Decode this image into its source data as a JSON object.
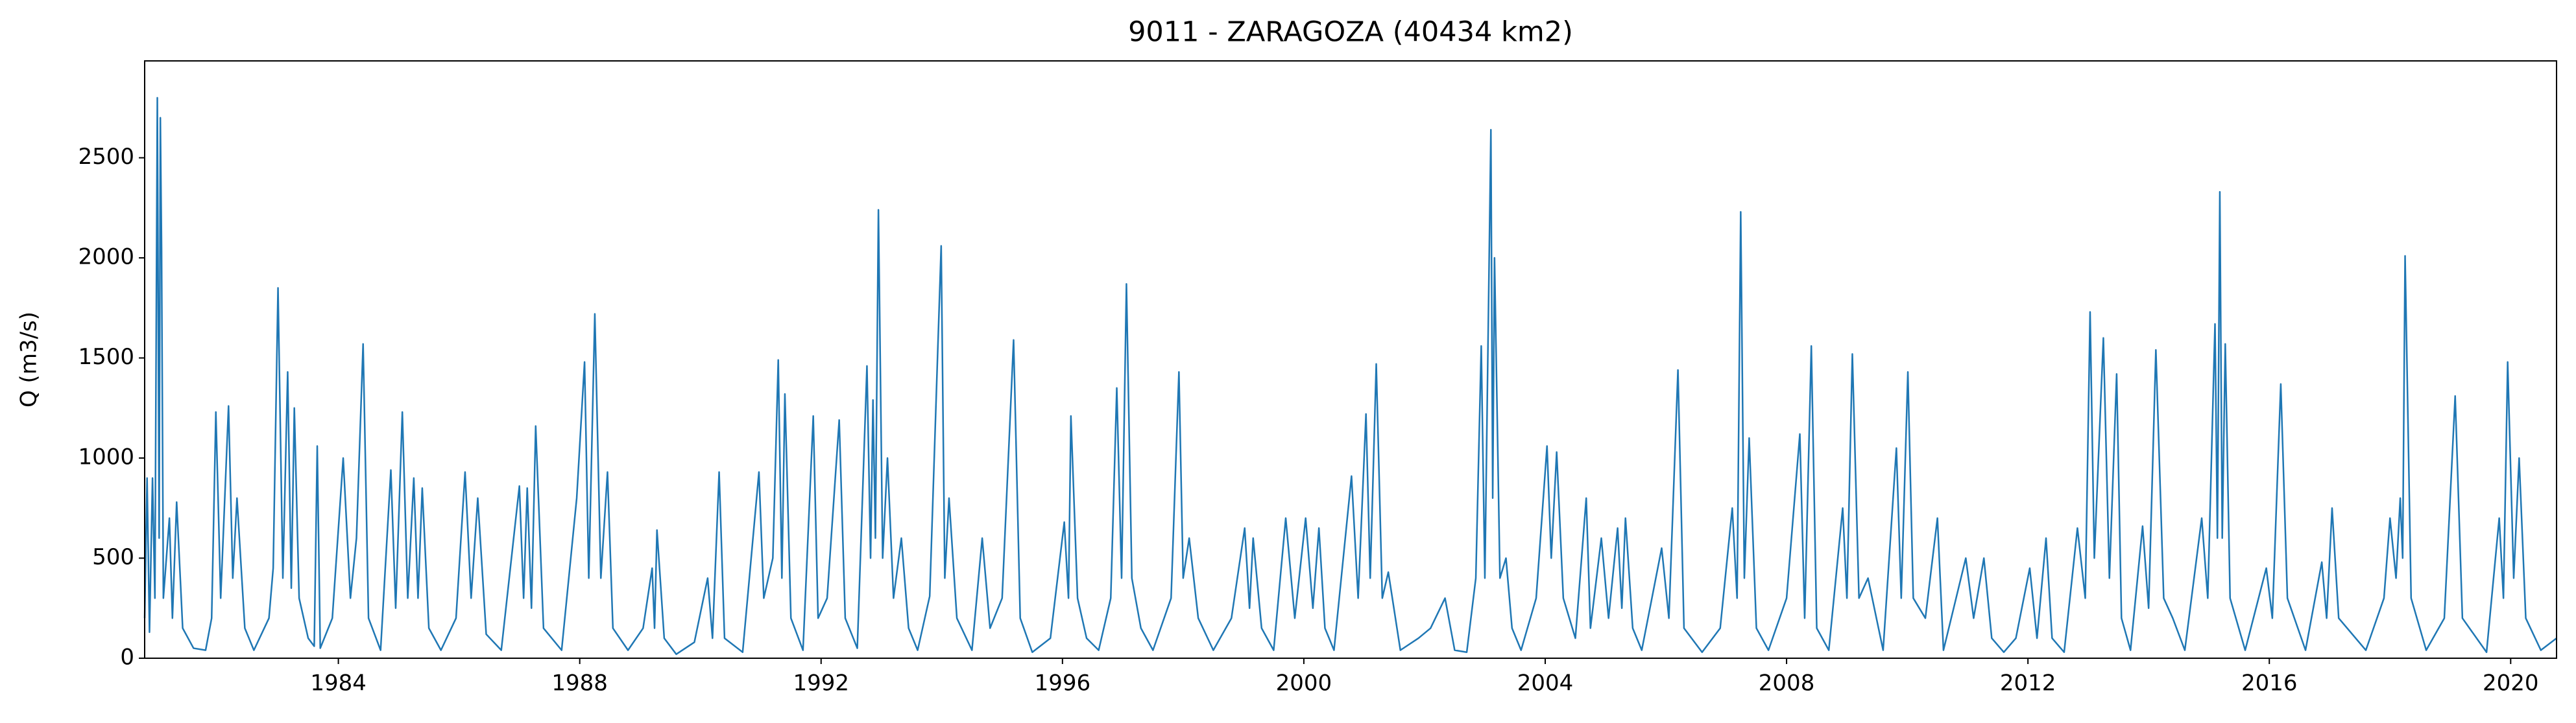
{
  "chart_data": {
    "type": "line",
    "title": "9011 - ZARAGOZA (40434 km2)",
    "y_label": "Q (m3/s)",
    "color": "#1f77b4",
    "xlim": [
      1980.79,
      2020.76
    ],
    "xticks": [
      1984,
      1988,
      1992,
      1996,
      2000,
      2004,
      2008,
      2012,
      2016,
      2020
    ],
    "ylim": [
      0,
      2984
    ],
    "yticks": [
      0,
      500,
      1000,
      1500,
      2000,
      2500
    ],
    "grid": false,
    "x": [
      1980.79,
      1980.83,
      1980.87,
      1980.92,
      1980.96,
      1981.0,
      1981.03,
      1981.05,
      1981.07,
      1981.1,
      1981.2,
      1981.25,
      1981.32,
      1981.42,
      1981.6,
      1981.8,
      1981.9,
      1981.97,
      1982.05,
      1982.18,
      1982.25,
      1982.32,
      1982.45,
      1982.6,
      1982.85,
      1982.92,
      1983.0,
      1983.08,
      1983.16,
      1983.22,
      1983.27,
      1983.35,
      1983.5,
      1983.6,
      1983.65,
      1983.7,
      1983.9,
      1984.08,
      1984.2,
      1984.3,
      1984.41,
      1984.5,
      1984.7,
      1984.87,
      1984.95,
      1985.06,
      1985.15,
      1985.25,
      1985.32,
      1985.39,
      1985.5,
      1985.7,
      1985.95,
      1986.1,
      1986.2,
      1986.31,
      1986.45,
      1986.7,
      1987.0,
      1987.07,
      1987.13,
      1987.2,
      1987.27,
      1987.4,
      1987.7,
      1987.95,
      1988.08,
      1988.15,
      1988.25,
      1988.35,
      1988.46,
      1988.55,
      1988.8,
      1989.05,
      1989.2,
      1989.24,
      1989.28,
      1989.4,
      1989.6,
      1989.9,
      1990.12,
      1990.2,
      1990.31,
      1990.4,
      1990.7,
      1990.97,
      1991.05,
      1991.2,
      1991.29,
      1991.35,
      1991.4,
      1991.5,
      1991.7,
      1991.87,
      1991.95,
      1992.1,
      1992.3,
      1992.4,
      1992.6,
      1992.76,
      1992.82,
      1992.86,
      1992.9,
      1992.95,
      1993.02,
      1993.1,
      1993.2,
      1993.33,
      1993.45,
      1993.6,
      1993.8,
      1993.99,
      1994.05,
      1994.12,
      1994.25,
      1994.5,
      1994.67,
      1994.8,
      1995.0,
      1995.19,
      1995.3,
      1995.5,
      1995.8,
      1996.03,
      1996.1,
      1996.14,
      1996.25,
      1996.4,
      1996.6,
      1996.8,
      1996.9,
      1996.98,
      1997.06,
      1997.15,
      1997.3,
      1997.5,
      1997.8,
      1997.93,
      1998.0,
      1998.1,
      1998.25,
      1998.5,
      1998.8,
      1999.02,
      1999.1,
      1999.16,
      1999.3,
      1999.5,
      1999.7,
      1999.85,
      2000.03,
      2000.15,
      2000.25,
      2000.35,
      2000.5,
      2000.79,
      2000.9,
      2001.03,
      2001.1,
      2001.2,
      2001.3,
      2001.4,
      2001.6,
      2001.9,
      2002.1,
      2002.34,
      2002.5,
      2002.7,
      2002.85,
      2002.94,
      2003.0,
      2003.1,
      2003.13,
      2003.16,
      2003.25,
      2003.35,
      2003.45,
      2003.6,
      2003.85,
      2004.03,
      2004.1,
      2004.19,
      2004.3,
      2004.5,
      2004.68,
      2004.75,
      2004.93,
      2005.05,
      2005.2,
      2005.27,
      2005.33,
      2005.45,
      2005.6,
      2005.93,
      2006.05,
      2006.2,
      2006.3,
      2006.6,
      2006.9,
      2007.1,
      2007.18,
      2007.24,
      2007.3,
      2007.38,
      2007.5,
      2007.7,
      2008.0,
      2008.22,
      2008.3,
      2008.41,
      2008.5,
      2008.7,
      2008.93,
      2009.0,
      2009.09,
      2009.2,
      2009.35,
      2009.6,
      2009.82,
      2009.9,
      2010.01,
      2010.1,
      2010.3,
      2010.5,
      2010.6,
      2010.97,
      2011.1,
      2011.27,
      2011.4,
      2011.6,
      2011.8,
      2012.03,
      2012.15,
      2012.3,
      2012.4,
      2012.6,
      2012.82,
      2012.95,
      2013.03,
      2013.1,
      2013.25,
      2013.35,
      2013.47,
      2013.55,
      2013.7,
      2013.9,
      2014.0,
      2014.12,
      2014.25,
      2014.4,
      2014.6,
      2014.88,
      2014.98,
      2015.1,
      2015.14,
      2015.18,
      2015.22,
      2015.27,
      2015.35,
      2015.6,
      2015.95,
      2016.05,
      2016.19,
      2016.3,
      2016.6,
      2016.87,
      2016.95,
      2017.04,
      2017.15,
      2017.6,
      2017.9,
      2018.0,
      2018.1,
      2018.17,
      2018.21,
      2018.25,
      2018.35,
      2018.6,
      2018.9,
      2019.08,
      2019.2,
      2019.6,
      2019.81,
      2019.88,
      2019.95,
      2020.05,
      2020.14,
      2020.25,
      2020.5,
      2020.76
    ],
    "values": [
      200,
      900,
      130,
      900,
      300,
      2800,
      600,
      2700,
      2050,
      300,
      700,
      200,
      780,
      150,
      50,
      40,
      200,
      1230,
      300,
      1260,
      400,
      800,
      150,
      40,
      200,
      450,
      1850,
      400,
      1430,
      350,
      1250,
      300,
      100,
      60,
      1060,
      50,
      200,
      1000,
      300,
      600,
      1570,
      200,
      40,
      940,
      250,
      1230,
      300,
      900,
      300,
      850,
      150,
      40,
      200,
      930,
      300,
      800,
      120,
      40,
      860,
      300,
      850,
      250,
      1160,
      150,
      40,
      800,
      1480,
      400,
      1720,
      400,
      930,
      150,
      40,
      150,
      450,
      150,
      640,
      100,
      20,
      80,
      400,
      100,
      930,
      100,
      30,
      930,
      300,
      500,
      1490,
      400,
      1320,
      200,
      40,
      1210,
      200,
      300,
      1190,
      200,
      50,
      1460,
      500,
      1290,
      600,
      2240,
      500,
      1000,
      300,
      600,
      150,
      40,
      310,
      2060,
      400,
      800,
      200,
      40,
      600,
      150,
      300,
      1590,
      200,
      30,
      100,
      680,
      300,
      1210,
      300,
      100,
      40,
      300,
      1350,
      400,
      1870,
      400,
      150,
      40,
      300,
      1430,
      400,
      600,
      200,
      40,
      200,
      650,
      250,
      600,
      150,
      40,
      700,
      200,
      700,
      250,
      650,
      150,
      40,
      910,
      300,
      1220,
      400,
      1470,
      300,
      430,
      40,
      100,
      150,
      300,
      40,
      30,
      400,
      1560,
      400,
      2640,
      800,
      2000,
      400,
      500,
      150,
      40,
      300,
      1060,
      500,
      1030,
      300,
      100,
      800,
      150,
      600,
      200,
      650,
      250,
      700,
      150,
      40,
      550,
      200,
      1440,
      150,
      30,
      150,
      750,
      300,
      2230,
      400,
      1100,
      150,
      40,
      300,
      1120,
      200,
      1560,
      150,
      40,
      750,
      300,
      1520,
      300,
      400,
      40,
      1050,
      300,
      1430,
      300,
      200,
      700,
      40,
      500,
      200,
      500,
      100,
      30,
      100,
      450,
      100,
      600,
      100,
      30,
      650,
      300,
      1730,
      500,
      1600,
      400,
      1420,
      200,
      40,
      660,
      250,
      1540,
      300,
      200,
      40,
      700,
      300,
      1670,
      600,
      2330,
      600,
      1570,
      300,
      40,
      450,
      200,
      1370,
      300,
      40,
      480,
      200,
      750,
      200,
      40,
      300,
      700,
      400,
      800,
      500,
      2010,
      300,
      40,
      200,
      1310,
      200,
      30,
      700,
      300,
      1480,
      400,
      1000,
      200,
      40,
      100
    ]
  }
}
